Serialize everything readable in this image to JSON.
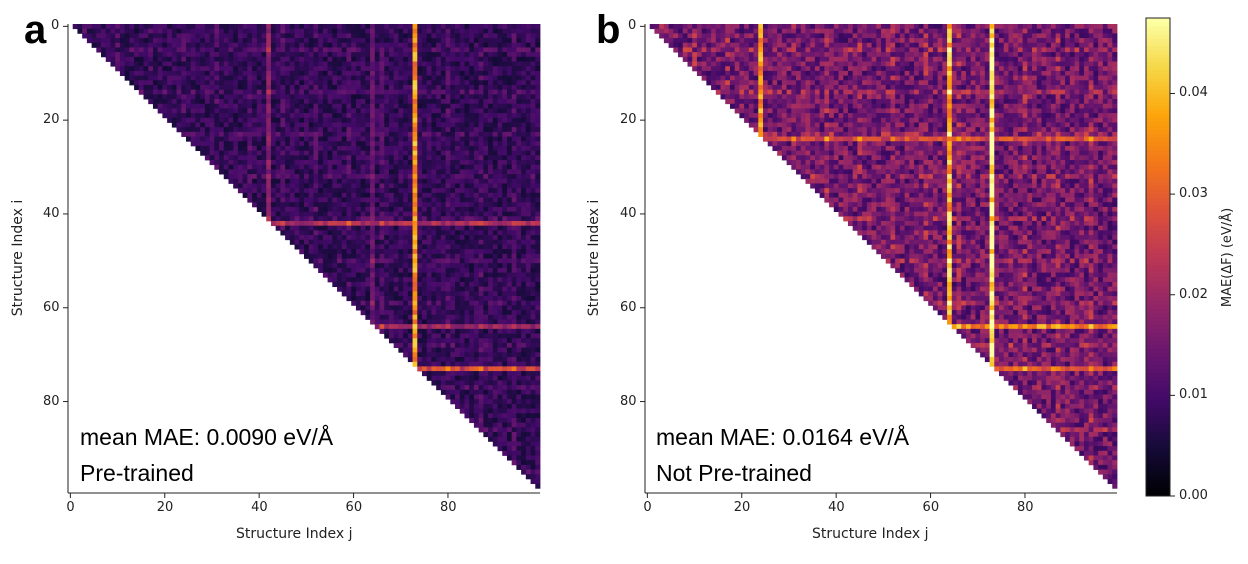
{
  "chart_data": [
    {
      "type": "heatmap",
      "panel_label": "a",
      "title": "",
      "xlabel": "Structure Index j",
      "ylabel": "Structure Index i",
      "n": 100,
      "mask": "upper-triangle (i < j)",
      "xlim": [
        0,
        99
      ],
      "ylim": [
        99,
        0
      ],
      "x_ticks": [
        0,
        20,
        40,
        60,
        80
      ],
      "y_ticks": [
        0,
        20,
        40,
        60,
        80
      ],
      "base_value": 0.008,
      "highlight_rows": [
        {
          "index": 42,
          "value": 0.022
        },
        {
          "index": 64,
          "value": 0.02
        },
        {
          "index": 73,
          "value": 0.027
        }
      ],
      "highlight_cols": [
        {
          "index": 42,
          "value": 0.018
        },
        {
          "index": 64,
          "value": 0.014
        },
        {
          "index": 73,
          "value": 0.03
        }
      ],
      "annotation_line1": "mean MAE: 0.0090 eV/Å",
      "annotation_line2": "Pre-trained",
      "mean_mae": 0.009
    },
    {
      "type": "heatmap",
      "panel_label": "b",
      "title": "",
      "xlabel": "Structure Index j",
      "ylabel": "Structure Index i",
      "n": 100,
      "mask": "upper-triangle (i < j)",
      "xlim": [
        0,
        99
      ],
      "ylim": [
        99,
        0
      ],
      "x_ticks": [
        0,
        20,
        40,
        60,
        80
      ],
      "y_ticks": [
        0,
        20,
        40,
        60,
        80
      ],
      "base_value": 0.015,
      "highlight_rows": [
        {
          "index": 24,
          "value": 0.028
        },
        {
          "index": 64,
          "value": 0.036
        },
        {
          "index": 73,
          "value": 0.032
        }
      ],
      "highlight_cols": [
        {
          "index": 24,
          "value": 0.03
        },
        {
          "index": 64,
          "value": 0.04
        },
        {
          "index": 73,
          "value": 0.038
        }
      ],
      "annotation_line1": "mean MAE: 0.0164 eV/Å",
      "annotation_line2": "Not Pre-trained",
      "mean_mae": 0.0164
    }
  ],
  "colorbar": {
    "label": "MAE(ΔF) (eV/Å)",
    "colormap": "inferno",
    "range": [
      0,
      0.0475
    ],
    "ticks": [
      "0.00",
      "0.01",
      "0.02",
      "0.03",
      "0.04"
    ],
    "tick_values": [
      0,
      0.01,
      0.02,
      0.03,
      0.04
    ]
  }
}
